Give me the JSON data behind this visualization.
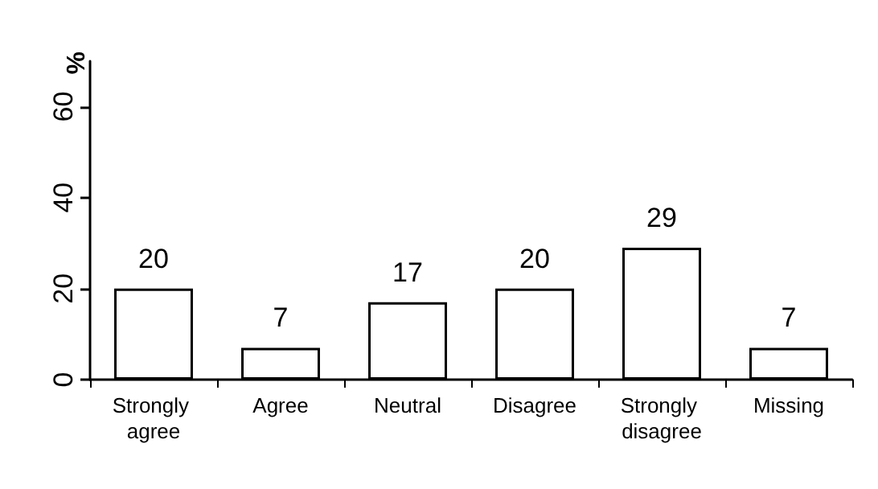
{
  "chart_data": {
    "type": "bar",
    "ylabel": "%",
    "categories": [
      "Strongly agree",
      "Agree",
      "Neutral",
      "Disagree",
      "Strongly disagree",
      "Missing"
    ],
    "values": [
      20,
      7,
      17,
      20,
      29,
      7
    ],
    "color": "#ffffff",
    "ylim": [
      0,
      70
    ],
    "yticks": [
      0,
      20,
      40,
      60
    ],
    "data_labels": true,
    "grid": false
  }
}
